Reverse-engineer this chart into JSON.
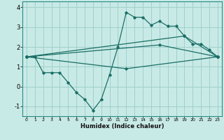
{
  "xlabel": "Humidex (Indice chaleur)",
  "bg_color": "#c8eae6",
  "grid_color": "#a0d0cc",
  "line_color": "#1a6e65",
  "xlim": [
    -0.5,
    23.5
  ],
  "ylim": [
    -1.5,
    4.3
  ],
  "xticks": [
    0,
    1,
    2,
    3,
    4,
    5,
    6,
    7,
    8,
    9,
    10,
    11,
    12,
    13,
    14,
    15,
    16,
    17,
    18,
    19,
    20,
    21,
    22,
    23
  ],
  "yticks": [
    -1,
    0,
    1,
    2,
    3,
    4
  ],
  "lines": [
    {
      "x": [
        0,
        1,
        2,
        3,
        4,
        5,
        6,
        7,
        8,
        9,
        10,
        11,
        12,
        13,
        14,
        15,
        16,
        17,
        18,
        19,
        20,
        21,
        22,
        23
      ],
      "y": [
        1.5,
        1.5,
        0.7,
        0.7,
        0.7,
        0.2,
        -0.3,
        -0.65,
        -1.2,
        -0.65,
        0.6,
        2.0,
        3.75,
        3.5,
        3.5,
        3.1,
        3.3,
        3.05,
        3.05,
        2.55,
        2.15,
        2.15,
        1.85,
        1.5
      ]
    },
    {
      "x": [
        0,
        12,
        23
      ],
      "y": [
        1.5,
        0.9,
        1.5
      ]
    },
    {
      "x": [
        0,
        16,
        23
      ],
      "y": [
        1.5,
        2.1,
        1.5
      ]
    },
    {
      "x": [
        0,
        19,
        23
      ],
      "y": [
        1.5,
        2.55,
        1.5
      ]
    }
  ]
}
